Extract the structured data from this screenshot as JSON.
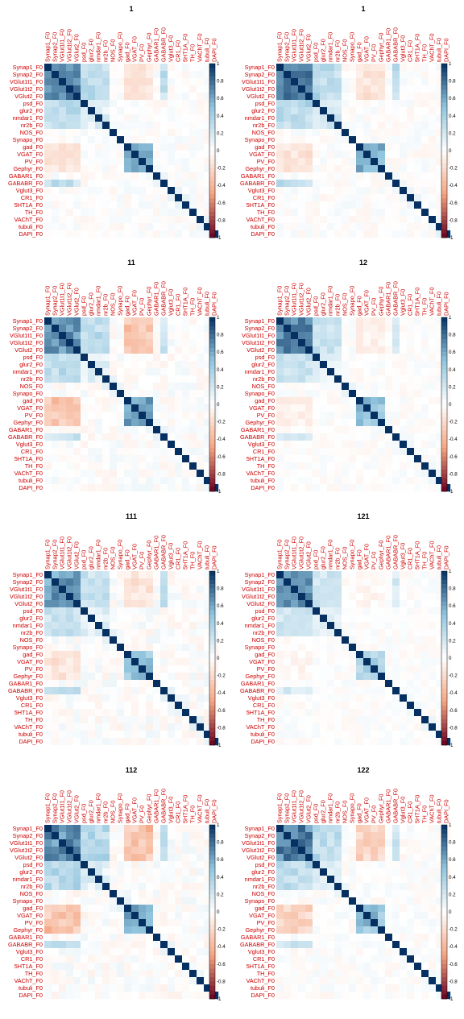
{
  "labels": [
    "Synap1_F0",
    "Synap2_F0",
    "VGlut1t1_F0",
    "VGlut1t2_F0",
    "VGlut2_F0",
    "psd_F0",
    "glur2_F0",
    "nmdar1_F0",
    "nr2b_F0",
    "NOS_F0",
    "Synapo_F0",
    "gad_F0",
    "VGAT_F0",
    "PV_F0",
    "Gephyr_F0",
    "GABAR1_F0",
    "GABABR_F0",
    "Vglut3_F0",
    "CR1_F0",
    "5HT1A_F0",
    "TH_F0",
    "VAChT_F0",
    "tubuli_F0",
    "DAPI_F0"
  ],
  "colorbar": {
    "ticks": [
      "1",
      "0.8",
      "0.6",
      "0.4",
      "0.2",
      "0",
      "-0.2",
      "-0.4",
      "-0.6",
      "-0.8",
      "-1"
    ],
    "colors": {
      "neg_strong": "#67001f",
      "neg_mid": "#f4a582",
      "zero": "#ffffff",
      "pos_mid": "#92c5de",
      "pos_strong": "#053061"
    }
  },
  "chart_data": [
    {
      "type": "heatmap",
      "title": "1",
      "value_range": [
        -1,
        1
      ],
      "pattern": {
        "excit": 0.82,
        "excitPsd": 0.38,
        "inhib": 0.65,
        "cross": -0.2,
        "gababr": 0.35,
        "noise": 0.06,
        "seed": 11
      }
    },
    {
      "type": "heatmap",
      "title": "1",
      "value_range": [
        -1,
        1
      ],
      "pattern": {
        "excit": 0.84,
        "excitPsd": 0.38,
        "inhib": 0.65,
        "cross": -0.2,
        "gababr": 0.35,
        "noise": 0.06,
        "seed": 12
      }
    },
    {
      "type": "heatmap",
      "title": "11",
      "value_range": [
        -1,
        1
      ],
      "pattern": {
        "excit": 0.78,
        "excitPsd": 0.35,
        "inhib": 0.7,
        "cross": -0.35,
        "gababr": 0.3,
        "noise": 0.07,
        "seed": 21
      }
    },
    {
      "type": "heatmap",
      "title": "12",
      "value_range": [
        -1,
        1
      ],
      "pattern": {
        "excit": 0.8,
        "excitPsd": 0.3,
        "inhib": 0.55,
        "cross": -0.1,
        "gababr": 0.25,
        "noise": 0.05,
        "seed": 22
      }
    },
    {
      "type": "heatmap",
      "title": "111",
      "value_range": [
        -1,
        1
      ],
      "pattern": {
        "excit": 0.7,
        "excitPsd": 0.3,
        "inhib": 0.55,
        "cross": -0.15,
        "gababr": 0.3,
        "noise": 0.08,
        "seed": 31
      }
    },
    {
      "type": "heatmap",
      "title": "121",
      "value_range": [
        -1,
        1
      ],
      "pattern": {
        "excit": 0.72,
        "excitPsd": 0.28,
        "inhib": 0.4,
        "cross": -0.05,
        "gababr": 0.2,
        "noise": 0.05,
        "seed": 32
      }
    },
    {
      "type": "heatmap",
      "title": "112",
      "value_range": [
        -1,
        1
      ],
      "pattern": {
        "excit": 0.75,
        "excitPsd": 0.4,
        "inhib": 0.6,
        "cross": -0.4,
        "gababr": 0.35,
        "noise": 0.08,
        "seed": 41
      }
    },
    {
      "type": "heatmap",
      "title": "122",
      "value_range": [
        -1,
        1
      ],
      "pattern": {
        "excit": 0.8,
        "excitPsd": 0.35,
        "inhib": 0.55,
        "cross": -0.3,
        "gababr": 0.3,
        "noise": 0.06,
        "seed": 42
      }
    }
  ]
}
